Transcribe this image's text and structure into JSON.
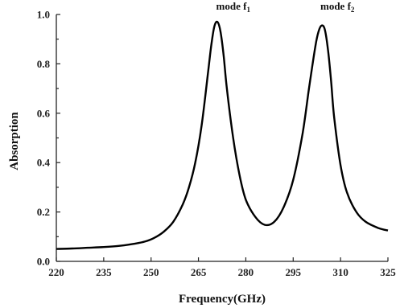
{
  "chart_data": {
    "type": "line",
    "title": "",
    "xlabel": "Frequency(GHz)",
    "ylabel": "Absorption",
    "xlim": [
      220,
      325
    ],
    "ylim": [
      0.0,
      1.0
    ],
    "x_ticks": [
      220,
      235,
      250,
      265,
      280,
      295,
      310,
      325
    ],
    "x_tick_labels": [
      "220",
      "235",
      "250",
      "265",
      "280",
      "295",
      "310",
      "325"
    ],
    "y_ticks": [
      0.0,
      0.2,
      0.4,
      0.6,
      0.8,
      1.0
    ],
    "y_tick_labels": [
      "0.0",
      "0.2",
      "0.4",
      "0.6",
      "0.8",
      "1.0"
    ],
    "grid": false,
    "series": [
      {
        "color": "#000000",
        "x": [
          220,
          225,
          230,
          235,
          240,
          245,
          248,
          251,
          254,
          257,
          260,
          262,
          264,
          266,
          268,
          269,
          270,
          271,
          272,
          273,
          274,
          276,
          278,
          280,
          283,
          286,
          289,
          292,
          295,
          298,
          300,
          302,
          303,
          304,
          305,
          306,
          307,
          308,
          310,
          312,
          315,
          318,
          322,
          325
        ],
        "y": [
          0.05,
          0.052,
          0.055,
          0.058,
          0.063,
          0.072,
          0.08,
          0.095,
          0.12,
          0.16,
          0.23,
          0.3,
          0.4,
          0.55,
          0.76,
          0.87,
          0.95,
          0.97,
          0.93,
          0.83,
          0.7,
          0.5,
          0.35,
          0.25,
          0.18,
          0.148,
          0.16,
          0.22,
          0.33,
          0.52,
          0.7,
          0.87,
          0.93,
          0.955,
          0.94,
          0.86,
          0.73,
          0.58,
          0.39,
          0.28,
          0.2,
          0.16,
          0.135,
          0.125
        ]
      }
    ],
    "annotations": [
      {
        "label_parts": [
          "mode f",
          "1"
        ],
        "x": 276,
        "y": 1.02
      },
      {
        "label_parts": [
          "mode f",
          "2"
        ],
        "x": 309,
        "y": 1.02
      }
    ]
  }
}
